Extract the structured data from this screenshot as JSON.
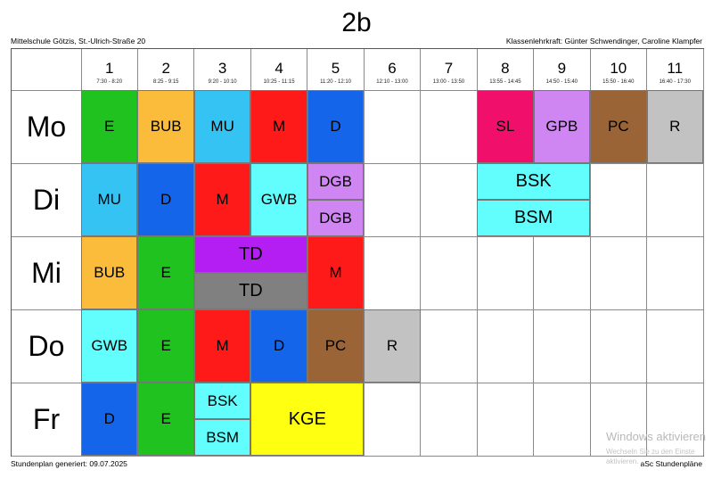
{
  "header": {
    "title": "2b",
    "school": "Mittelschule Götzis, St.-Ulrich-Straße 20",
    "teacher": "Klassenlehrkraft: Günter Schwendinger, Caroline Klampfer"
  },
  "footer": {
    "generated": "Stundenplan generiert: 09.07.2025",
    "brand": "aSc Stundenpläne"
  },
  "watermark": {
    "title": "Windows aktivieren",
    "line1": "Wechseln Sie zu den Einste",
    "line2": "aktivieren."
  },
  "periods": [
    {
      "num": "1",
      "time": "7:30 - 8:20"
    },
    {
      "num": "2",
      "time": "8:25 - 9:15"
    },
    {
      "num": "3",
      "time": "9:20 - 10:10"
    },
    {
      "num": "4",
      "time": "10:25 - 11:15"
    },
    {
      "num": "5",
      "time": "11:20 - 12:10"
    },
    {
      "num": "6",
      "time": "12:10 - 13:00"
    },
    {
      "num": "7",
      "time": "13:00 - 13:50"
    },
    {
      "num": "8",
      "time": "13:55 - 14:45"
    },
    {
      "num": "9",
      "time": "14:50 - 15:40"
    },
    {
      "num": "10",
      "time": "15:50 - 16:40"
    },
    {
      "num": "11",
      "time": "16:40 - 17:30"
    }
  ],
  "days": [
    "Mo",
    "Di",
    "Mi",
    "Do",
    "Fr"
  ],
  "lessons": [
    {
      "day": 0,
      "period": 1,
      "span": 1,
      "part": "full",
      "label": "E",
      "color": "#1fc21f"
    },
    {
      "day": 0,
      "period": 2,
      "span": 1,
      "part": "full",
      "label": "BUB",
      "color": "#fbbc3c"
    },
    {
      "day": 0,
      "period": 3,
      "span": 1,
      "part": "full",
      "label": "MU",
      "color": "#35c3f3"
    },
    {
      "day": 0,
      "period": 4,
      "span": 1,
      "part": "full",
      "label": "M",
      "color": "#ff1a1a"
    },
    {
      "day": 0,
      "period": 5,
      "span": 1,
      "part": "full",
      "label": "D",
      "color": "#1565ea"
    },
    {
      "day": 0,
      "period": 8,
      "span": 1,
      "part": "full",
      "label": "SL",
      "color": "#f0106b"
    },
    {
      "day": 0,
      "period": 9,
      "span": 1,
      "part": "full",
      "label": "GPB",
      "color": "#cf86f2"
    },
    {
      "day": 0,
      "period": 10,
      "span": 1,
      "part": "full",
      "label": "PC",
      "color": "#9b6436"
    },
    {
      "day": 0,
      "period": 11,
      "span": 1,
      "part": "full",
      "label": "R",
      "color": "#c2c2c2"
    },
    {
      "day": 1,
      "period": 1,
      "span": 1,
      "part": "full",
      "label": "MU",
      "color": "#35c3f3"
    },
    {
      "day": 1,
      "period": 2,
      "span": 1,
      "part": "full",
      "label": "D",
      "color": "#1565ea"
    },
    {
      "day": 1,
      "period": 3,
      "span": 1,
      "part": "full",
      "label": "M",
      "color": "#ff1a1a"
    },
    {
      "day": 1,
      "period": 4,
      "span": 1,
      "part": "full",
      "label": "GWB",
      "color": "#62fefe"
    },
    {
      "day": 1,
      "period": 5,
      "span": 1,
      "part": "top",
      "label": "DGB",
      "color": "#cf86f2"
    },
    {
      "day": 1,
      "period": 5,
      "span": 1,
      "part": "bottom",
      "label": "DGB",
      "color": "#cf86f2"
    },
    {
      "day": 1,
      "period": 8,
      "span": 2,
      "part": "top",
      "label": "BSK",
      "color": "#62fefe"
    },
    {
      "day": 1,
      "period": 8,
      "span": 2,
      "part": "bottom",
      "label": "BSM",
      "color": "#62fefe"
    },
    {
      "day": 2,
      "period": 1,
      "span": 1,
      "part": "full",
      "label": "BUB",
      "color": "#fbbc3c"
    },
    {
      "day": 2,
      "period": 2,
      "span": 1,
      "part": "full",
      "label": "E",
      "color": "#1fc21f"
    },
    {
      "day": 2,
      "period": 3,
      "span": 2,
      "part": "top",
      "label": "TD",
      "color": "#b51ef3"
    },
    {
      "day": 2,
      "period": 3,
      "span": 2,
      "part": "bottom",
      "label": "TD",
      "color": "#808080"
    },
    {
      "day": 2,
      "period": 5,
      "span": 1,
      "part": "full",
      "label": "M",
      "color": "#ff1a1a"
    },
    {
      "day": 3,
      "period": 1,
      "span": 1,
      "part": "full",
      "label": "GWB",
      "color": "#62fefe"
    },
    {
      "day": 3,
      "period": 2,
      "span": 1,
      "part": "full",
      "label": "E",
      "color": "#1fc21f"
    },
    {
      "day": 3,
      "period": 3,
      "span": 1,
      "part": "full",
      "label": "M",
      "color": "#ff1a1a"
    },
    {
      "day": 3,
      "period": 4,
      "span": 1,
      "part": "full",
      "label": "D",
      "color": "#1565ea"
    },
    {
      "day": 3,
      "period": 5,
      "span": 1,
      "part": "full",
      "label": "PC",
      "color": "#9b6436"
    },
    {
      "day": 3,
      "period": 6,
      "span": 1,
      "part": "full",
      "label": "R",
      "color": "#c2c2c2"
    },
    {
      "day": 4,
      "period": 1,
      "span": 1,
      "part": "full",
      "label": "D",
      "color": "#1565ea"
    },
    {
      "day": 4,
      "period": 2,
      "span": 1,
      "part": "full",
      "label": "E",
      "color": "#1fc21f"
    },
    {
      "day": 4,
      "period": 3,
      "span": 1,
      "part": "top",
      "label": "BSK",
      "color": "#62fefe"
    },
    {
      "day": 4,
      "period": 3,
      "span": 1,
      "part": "bottom",
      "label": "BSM",
      "color": "#62fefe"
    },
    {
      "day": 4,
      "period": 4,
      "span": 2,
      "part": "full",
      "label": "KGE",
      "color": "#ffff12"
    }
  ]
}
